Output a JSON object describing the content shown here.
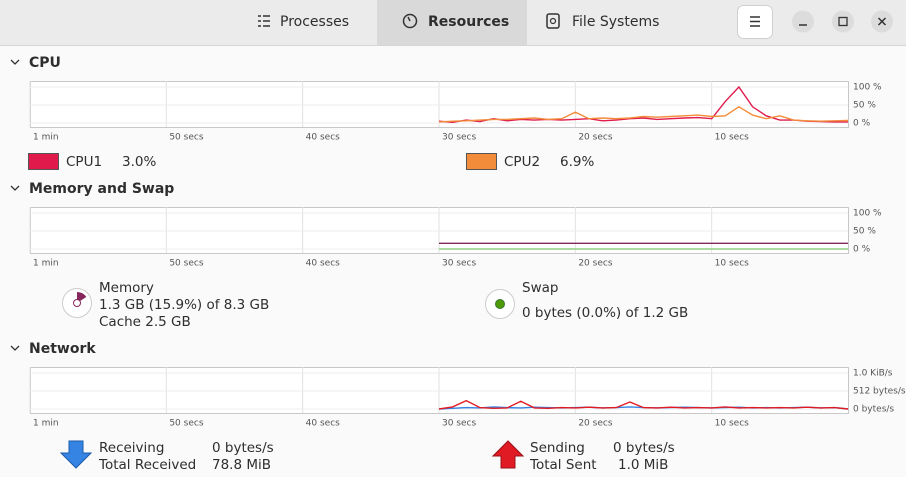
{
  "tabs": {
    "processes": "Processes",
    "resources": "Resources",
    "file_systems": "File Systems"
  },
  "cpu": {
    "title": "CPU",
    "type": "line",
    "x": [
      30,
      29,
      28,
      27,
      26,
      25,
      24,
      23,
      22,
      21,
      20,
      19,
      18,
      17,
      16,
      15,
      14,
      13,
      12,
      11,
      10,
      9,
      8,
      7,
      6,
      5,
      4,
      3,
      2,
      1,
      0
    ],
    "xlim": [
      60,
      0
    ],
    "xticks": [
      {
        "value": 60,
        "label": "1 min"
      },
      {
        "value": 50,
        "label": "50 secs"
      },
      {
        "value": 40,
        "label": "40 secs"
      },
      {
        "value": 30,
        "label": "30 secs"
      },
      {
        "value": 20,
        "label": "20 secs"
      },
      {
        "value": 10,
        "label": "10 secs"
      }
    ],
    "ylim": [
      0,
      100
    ],
    "yticks": [
      {
        "value": 100,
        "label": "100 %"
      },
      {
        "value": 50,
        "label": "50 %"
      },
      {
        "value": 0,
        "label": "0 %"
      }
    ],
    "series": [
      {
        "name": "CPU1",
        "color": "#e01b4c",
        "value_label": "3.0%",
        "values": [
          5,
          2,
          8,
          4,
          12,
          6,
          10,
          8,
          10,
          8,
          10,
          12,
          6,
          8,
          12,
          14,
          10,
          12,
          14,
          15,
          12,
          60,
          100,
          45,
          20,
          8,
          8,
          5,
          4,
          3,
          3.0
        ]
      },
      {
        "name": "CPU2",
        "color": "#f38c3a",
        "value_label": "6.9%",
        "values": [
          3,
          5,
          6,
          8,
          10,
          10,
          12,
          14,
          10,
          12,
          30,
          12,
          14,
          12,
          14,
          18,
          16,
          18,
          20,
          22,
          18,
          20,
          45,
          22,
          12,
          20,
          8,
          6,
          5,
          6,
          6.9
        ]
      }
    ]
  },
  "memory": {
    "title": "Memory and Swap",
    "type": "line",
    "x": [
      30,
      29,
      28,
      27,
      26,
      25,
      24,
      23,
      22,
      21,
      20,
      19,
      18,
      17,
      16,
      15,
      14,
      13,
      12,
      11,
      10,
      9,
      8,
      7,
      6,
      5,
      4,
      3,
      2,
      1,
      0
    ],
    "xlim": [
      60,
      0
    ],
    "xticks": [
      {
        "value": 60,
        "label": "1 min"
      },
      {
        "value": 50,
        "label": "50 secs"
      },
      {
        "value": 40,
        "label": "40 secs"
      },
      {
        "value": 30,
        "label": "30 secs"
      },
      {
        "value": 20,
        "label": "20 secs"
      },
      {
        "value": 10,
        "label": "10 secs"
      }
    ],
    "ylim": [
      0,
      100
    ],
    "yticks": [
      {
        "value": 100,
        "label": "100 %"
      },
      {
        "value": 50,
        "label": "50 %"
      },
      {
        "value": 0,
        "label": "0 %"
      }
    ],
    "series": [
      {
        "name": "Memory",
        "color": "#86275e",
        "detail": "1.3 GB (15.9%) of 8.3 GB",
        "cache": "Cache 2.5 GB",
        "values": [
          15.9,
          15.9,
          15.9,
          15.9,
          15.9,
          15.9,
          15.9,
          15.9,
          15.9,
          15.9,
          15.9,
          15.9,
          15.9,
          15.9,
          15.9,
          15.9,
          15.9,
          15.9,
          15.9,
          15.9,
          15.9,
          15.9,
          15.9,
          15.9,
          15.9,
          15.9,
          15.9,
          15.9,
          15.9,
          15.9,
          15.9
        ]
      },
      {
        "name": "Swap",
        "color": "#8fcf7e",
        "detail": "0 bytes (0.0%) of 1.2 GB",
        "values": [
          0,
          0,
          0,
          0,
          0,
          0,
          0,
          0,
          0,
          0,
          0,
          0,
          0,
          0,
          0,
          0,
          0,
          0,
          0,
          0,
          0,
          0,
          0,
          0,
          0,
          0,
          0,
          0,
          0,
          0,
          0
        ]
      }
    ]
  },
  "network": {
    "title": "Network",
    "type": "line",
    "x": [
      30,
      29,
      28,
      27,
      26,
      25,
      24,
      23,
      22,
      21,
      20,
      19,
      18,
      17,
      16,
      15,
      14,
      13,
      12,
      11,
      10,
      9,
      8,
      7,
      6,
      5,
      4,
      3,
      2,
      1,
      0
    ],
    "xlim": [
      60,
      0
    ],
    "xticks": [
      {
        "value": 60,
        "label": "1 min"
      },
      {
        "value": 50,
        "label": "50 secs"
      },
      {
        "value": 40,
        "label": "40 secs"
      },
      {
        "value": 30,
        "label": "30 secs"
      },
      {
        "value": 20,
        "label": "20 secs"
      },
      {
        "value": 10,
        "label": "10 secs"
      }
    ],
    "ylim": [
      0,
      1024
    ],
    "yticks": [
      {
        "value": 1024,
        "label": "1.0 KiB/s"
      },
      {
        "value": 512,
        "label": "512 bytes/s"
      },
      {
        "value": 0,
        "label": "0 bytes/s"
      }
    ],
    "series": [
      {
        "name": "Receiving",
        "color": "#3584e4",
        "rate": "0 bytes/s",
        "total_name": "Total Received",
        "total": "78.8 MiB",
        "values": [
          0,
          20,
          40,
          30,
          60,
          40,
          30,
          50,
          40,
          30,
          40,
          50,
          30,
          40,
          60,
          40,
          30,
          40,
          50,
          40,
          30,
          40,
          50,
          30,
          40,
          30,
          40,
          50,
          30,
          40,
          0
        ]
      },
      {
        "name": "Sending",
        "color": "#e01b24",
        "rate": "0 bytes/s",
        "total_name": "Total Sent",
        "total": "1.0 MiB",
        "values": [
          0,
          60,
          240,
          40,
          20,
          30,
          220,
          30,
          20,
          40,
          30,
          50,
          30,
          40,
          200,
          40,
          30,
          50,
          30,
          40,
          30,
          60,
          30,
          40,
          30,
          40,
          30,
          50,
          30,
          40,
          0
        ]
      }
    ]
  }
}
